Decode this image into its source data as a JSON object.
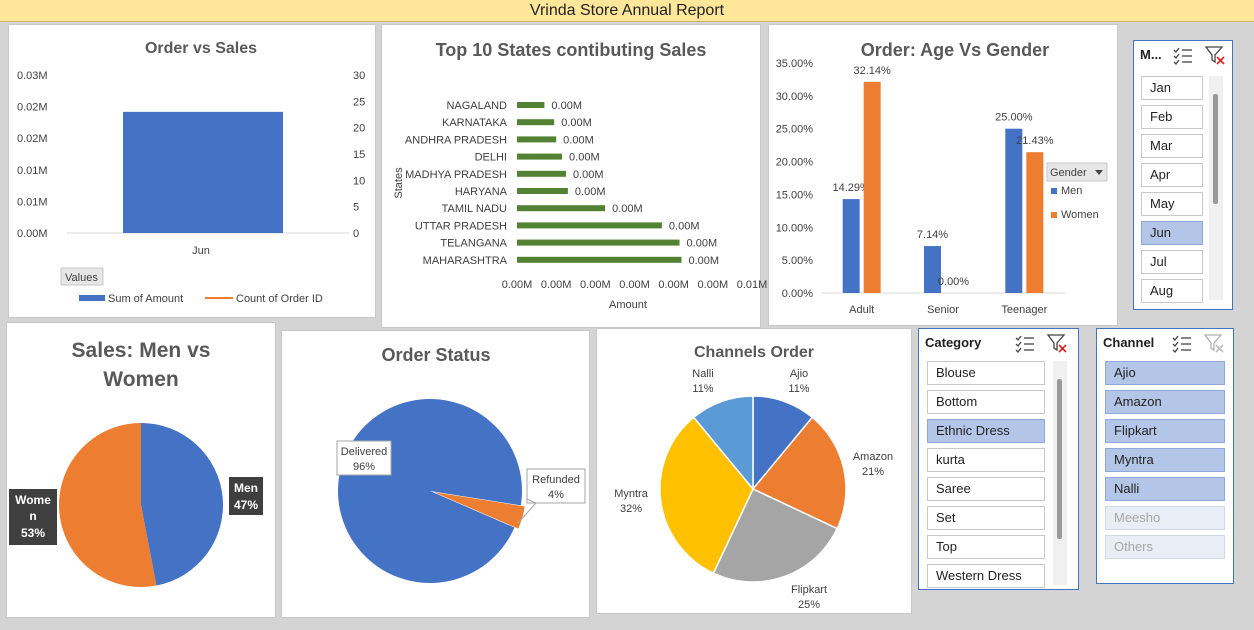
{
  "report_title": "Vrinda Store Annual Report",
  "colors": {
    "blue": "#4472c4",
    "orange": "#ed7d31",
    "green": "#548235",
    "gray": "#a5a5a5",
    "yellow": "#ffc000",
    "lightblue": "#5b9bd5"
  },
  "chart_data": [
    {
      "id": "order_vs_sales",
      "type": "bar",
      "title": "Order vs Sales",
      "categories": [
        "Jun"
      ],
      "series": [
        {
          "name": "Sum of Amount",
          "values": [
            0.023
          ],
          "axis": "left"
        },
        {
          "name": "Count of Order ID",
          "values": [
            0
          ],
          "axis": "right"
        }
      ],
      "y_left_ticks": [
        "0.03M",
        "0.02M",
        "0.02M",
        "0.01M",
        "0.01M",
        "0.00M"
      ],
      "y_right_ticks": [
        "30",
        "25",
        "20",
        "15",
        "10",
        "5",
        "0"
      ],
      "ylim_left": [
        0,
        0.03
      ],
      "ylim_right": [
        0,
        30
      ],
      "field_button": "Values",
      "legend_position": "bottom"
    },
    {
      "id": "top_states",
      "type": "bar",
      "orientation": "horizontal",
      "title": "Top 10 States contibuting Sales",
      "xlabel": "Amount",
      "ylabel": "States",
      "categories": [
        "NAGALAND",
        "KARNATAKA",
        "ANDHRA PRADESH",
        "DELHI",
        "MADHYA PRADESH",
        "HARYANA",
        "TAMIL NADU",
        "UTTAR PRADESH",
        "TELANGANA",
        "MAHARASHTRA"
      ],
      "values": [
        0.0014,
        0.0019,
        0.002,
        0.0023,
        0.0025,
        0.0026,
        0.0045,
        0.0074,
        0.0083,
        0.0084
      ],
      "data_labels": [
        "0.00M",
        "0.00M",
        "0.00M",
        "0.00M",
        "0.00M",
        "0.00M",
        "0.00M",
        "0.00M",
        "0.00M",
        "0.00M"
      ],
      "x_ticks": [
        "0.00M",
        "0.00M",
        "0.00M",
        "0.00M",
        "0.00M",
        "0.00M",
        "0.01M"
      ],
      "xlim": [
        0,
        0.012
      ]
    },
    {
      "id": "age_gender",
      "type": "bar",
      "title": "Order: Age Vs Gender",
      "categories": [
        "Adult",
        "Senior",
        "Teenager"
      ],
      "series": [
        {
          "name": "Men",
          "values": [
            14.29,
            7.14,
            25.0
          ],
          "labels": [
            "14.29%",
            "7.14%",
            "25.00%"
          ]
        },
        {
          "name": "Women",
          "values": [
            32.14,
            0.0,
            21.43
          ],
          "labels": [
            "32.14%",
            "0.00%",
            "21.43%"
          ]
        }
      ],
      "y_ticks": [
        "35.00%",
        "30.00%",
        "25.00%",
        "20.00%",
        "15.00%",
        "10.00%",
        "5.00%",
        "0.00%"
      ],
      "ylim": [
        0,
        35
      ],
      "legend_title": "Gender",
      "legend_position": "right"
    },
    {
      "id": "men_women",
      "type": "pie",
      "title_line1": "Sales: Men vs",
      "title_line2": "Women",
      "slices": [
        {
          "name": "Men",
          "value": 47,
          "label_name": "Men",
          "label_pct": "47%"
        },
        {
          "name": "Women",
          "value": 53,
          "label_name_1": "Wome",
          "label_name_2": "n",
          "label_pct": "53%"
        }
      ]
    },
    {
      "id": "order_status",
      "type": "pie",
      "title": "Order Status",
      "slices": [
        {
          "name": "Delivered",
          "value": 96,
          "label_pct": "96%"
        },
        {
          "name": "Refunded",
          "value": 4,
          "label_pct": "4%"
        }
      ]
    },
    {
      "id": "channels",
      "type": "pie",
      "title": "Channels Order",
      "slices": [
        {
          "name": "Ajio",
          "value": 11,
          "label_pct": "11%"
        },
        {
          "name": "Amazon",
          "value": 21,
          "label_pct": "21%"
        },
        {
          "name": "Flipkart",
          "value": 25,
          "label_pct": "25%"
        },
        {
          "name": "Myntra",
          "value": 32,
          "label_pct": "32%"
        },
        {
          "name": "Nalli",
          "value": 11,
          "label_pct": "11%"
        }
      ]
    }
  ],
  "slicers": {
    "month": {
      "header": "M...",
      "items": [
        {
          "label": "Jan",
          "state": "normal"
        },
        {
          "label": "Feb",
          "state": "normal"
        },
        {
          "label": "Mar",
          "state": "normal"
        },
        {
          "label": "Apr",
          "state": "normal"
        },
        {
          "label": "May",
          "state": "normal"
        },
        {
          "label": "Jun",
          "state": "selected"
        },
        {
          "label": "Jul",
          "state": "normal"
        },
        {
          "label": "Aug",
          "state": "normal"
        }
      ]
    },
    "category": {
      "header": "Category",
      "items": [
        {
          "label": "Blouse",
          "state": "normal"
        },
        {
          "label": "Bottom",
          "state": "normal"
        },
        {
          "label": "Ethnic Dress",
          "state": "selected"
        },
        {
          "label": "kurta",
          "state": "normal"
        },
        {
          "label": "Saree",
          "state": "normal"
        },
        {
          "label": "Set",
          "state": "normal"
        },
        {
          "label": "Top",
          "state": "normal"
        },
        {
          "label": "Western Dress",
          "state": "normal"
        }
      ]
    },
    "channel": {
      "header": "Channel",
      "items": [
        {
          "label": "Ajio",
          "state": "selected"
        },
        {
          "label": "Amazon",
          "state": "selected"
        },
        {
          "label": "Flipkart",
          "state": "selected"
        },
        {
          "label": "Myntra",
          "state": "selected"
        },
        {
          "label": "Nalli",
          "state": "selected"
        },
        {
          "label": "Meesho",
          "state": "dimmed"
        },
        {
          "label": "Others",
          "state": "dimmed"
        }
      ]
    }
  },
  "icons": {
    "multi_select": "multi-select-icon",
    "clear_filter": "clear-filter-icon"
  }
}
